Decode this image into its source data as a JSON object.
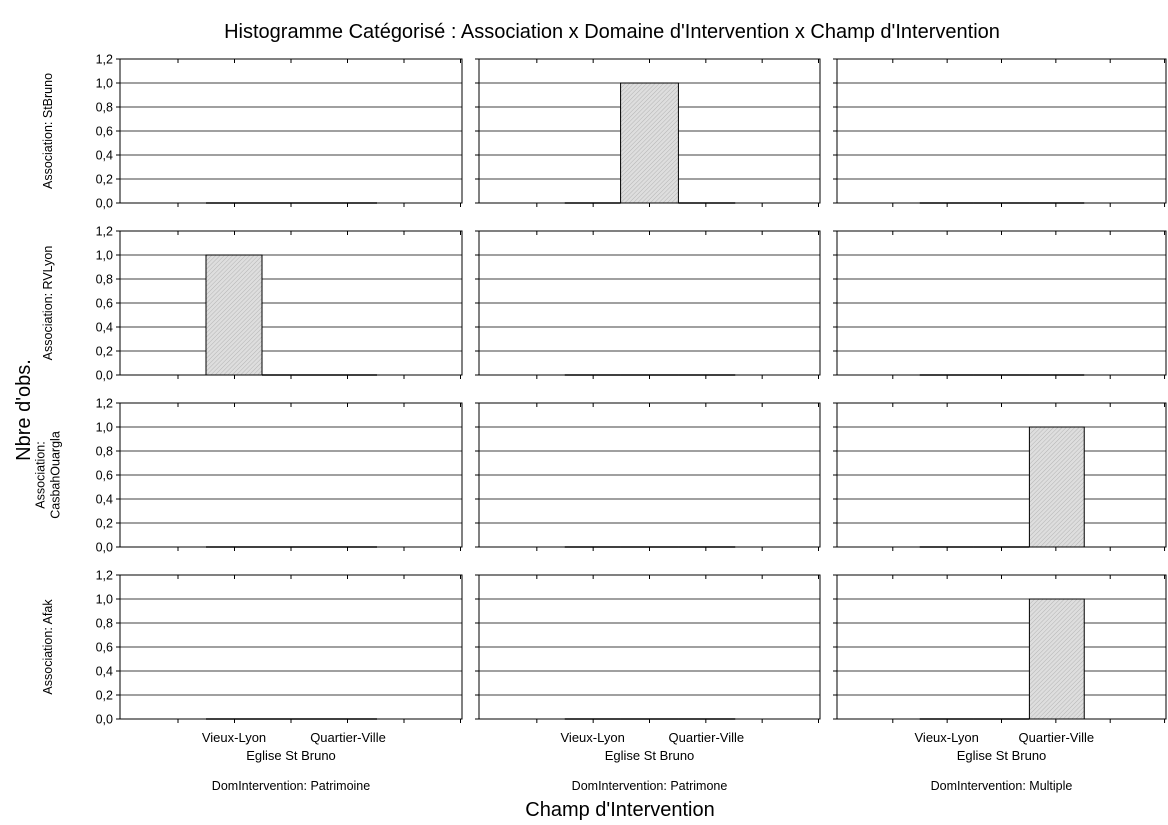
{
  "chart_data": {
    "type": "bar",
    "title": "Histogramme Catégorisé : Association x Domaine d'Intervention x Champ d'Intervention",
    "xlabel": "Champ d'Intervention",
    "ylabel": "Nbre d'obs.",
    "categories": [
      "Vieux-Lyon",
      "Eglise St Bruno",
      "Quartier-Ville"
    ],
    "ylim": [
      0,
      1.2
    ],
    "yticks": [
      "0,0",
      "0,2",
      "0,4",
      "0,6",
      "0,8",
      "1,0",
      "1,2"
    ],
    "grid": true,
    "bar_color": "#d4d4d4",
    "columns": [
      "DomIntervention: Patrimoine",
      "DomIntervention: Patrimone",
      "DomIntervention: Multiple"
    ],
    "rows": [
      {
        "label_lines": [
          "Association: StBruno"
        ]
      },
      {
        "label_lines": [
          "Association: RVLyon"
        ]
      },
      {
        "label_lines": [
          "Association:",
          "CasbahOuargla"
        ]
      },
      {
        "label_lines": [
          "Association: Afak"
        ]
      }
    ],
    "values": [
      [
        [
          0,
          0,
          0
        ],
        [
          0,
          1,
          0
        ],
        [
          0,
          0,
          0
        ]
      ],
      [
        [
          1,
          0,
          0
        ],
        [
          0,
          0,
          0
        ],
        [
          0,
          0,
          0
        ]
      ],
      [
        [
          0,
          0,
          0
        ],
        [
          0,
          0,
          0
        ],
        [
          0,
          0,
          1
        ]
      ],
      [
        [
          0,
          0,
          0
        ],
        [
          0,
          0,
          0
        ],
        [
          0,
          0,
          1
        ]
      ]
    ]
  }
}
